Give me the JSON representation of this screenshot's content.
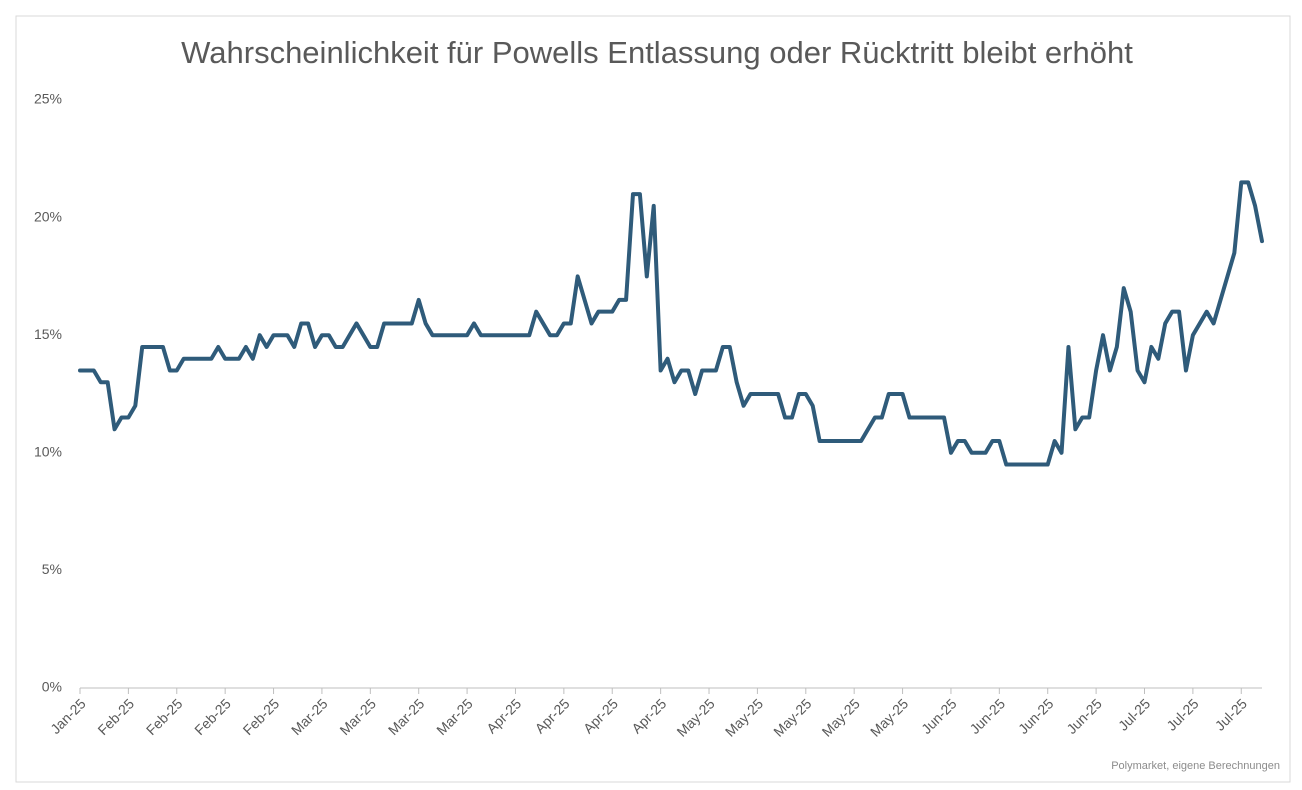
{
  "chart_data": {
    "type": "line",
    "title": "Wahrscheinlichkeit für Powells Entlassung oder Rücktritt bleibt erhöht",
    "source": "Polymarket, eigene Berechnungen",
    "color": "#2f5b7a",
    "grid": false,
    "ylim": [
      0,
      25
    ],
    "yticks": [
      {
        "value": 0,
        "label": "0%"
      },
      {
        "value": 5,
        "label": "5%"
      },
      {
        "value": 10,
        "label": "10%"
      },
      {
        "value": 15,
        "label": "15%"
      },
      {
        "value": 20,
        "label": "20%"
      },
      {
        "value": 25,
        "label": "25%"
      }
    ],
    "categories": [
      "Jan-25",
      null,
      null,
      null,
      null,
      null,
      null,
      "Feb-25",
      null,
      null,
      null,
      null,
      null,
      null,
      "Feb-25",
      null,
      null,
      null,
      null,
      null,
      null,
      "Feb-25",
      null,
      null,
      null,
      null,
      null,
      null,
      "Feb-25",
      null,
      null,
      null,
      null,
      null,
      null,
      "Mar-25",
      null,
      null,
      null,
      null,
      null,
      null,
      "Mar-25",
      null,
      null,
      null,
      null,
      null,
      null,
      "Mar-25",
      null,
      null,
      null,
      null,
      null,
      null,
      "Mar-25",
      null,
      null,
      null,
      null,
      null,
      null,
      "Apr-25",
      null,
      null,
      null,
      null,
      null,
      null,
      "Apr-25",
      null,
      null,
      null,
      null,
      null,
      null,
      "Apr-25",
      null,
      null,
      null,
      null,
      null,
      null,
      "Apr-25",
      null,
      null,
      null,
      null,
      null,
      null,
      "May-25",
      null,
      null,
      null,
      null,
      null,
      null,
      "May-25",
      null,
      null,
      null,
      null,
      null,
      null,
      "May-25",
      null,
      null,
      null,
      null,
      null,
      null,
      "May-25",
      null,
      null,
      null,
      null,
      null,
      null,
      "May-25",
      null,
      null,
      null,
      null,
      null,
      null,
      "Jun-25",
      null,
      null,
      null,
      null,
      null,
      null,
      "Jun-25",
      null,
      null,
      null,
      null,
      null,
      null,
      "Jun-25",
      null,
      null,
      null,
      null,
      null,
      null,
      "Jun-25",
      null,
      null,
      null,
      null,
      null,
      null,
      "Jul-25",
      null,
      null,
      null,
      null,
      null,
      null,
      "Jul-25",
      null,
      null,
      null,
      null,
      null,
      null,
      "Jul-25",
      null,
      null,
      null
    ],
    "values": [
      13.5,
      13.5,
      13.5,
      13,
      13,
      11,
      11.5,
      11.5,
      12,
      14.5,
      14.5,
      14.5,
      14.5,
      13.5,
      13.5,
      14,
      14,
      14,
      14,
      14,
      14.5,
      14,
      14,
      14,
      14.5,
      14,
      15,
      14.5,
      15,
      15,
      15,
      14.5,
      15.5,
      15.5,
      14.5,
      15,
      15,
      14.5,
      14.5,
      15,
      15.5,
      15,
      14.5,
      14.5,
      15.5,
      15.5,
      15.5,
      15.5,
      15.5,
      16.5,
      15.5,
      15,
      15,
      15,
      15,
      15,
      15,
      15.5,
      15,
      15,
      15,
      15,
      15,
      15,
      15,
      15,
      16,
      15.5,
      15,
      15,
      15.5,
      15.5,
      17.5,
      16.5,
      15.5,
      16,
      16,
      16,
      16.5,
      16.5,
      21,
      21,
      17.5,
      20.5,
      13.5,
      14,
      13,
      13.5,
      13.5,
      12.5,
      13.5,
      13.5,
      13.5,
      14.5,
      14.5,
      13,
      12,
      12.5,
      12.5,
      12.5,
      12.5,
      12.5,
      11.5,
      11.5,
      12.5,
      12.5,
      12,
      10.5,
      10.5,
      10.5,
      10.5,
      10.5,
      10.5,
      10.5,
      11,
      11.5,
      11.5,
      12.5,
      12.5,
      12.5,
      11.5,
      11.5,
      11.5,
      11.5,
      11.5,
      11.5,
      10,
      10.5,
      10.5,
      10,
      10,
      10,
      10.5,
      10.5,
      9.5,
      9.5,
      9.5,
      9.5,
      9.5,
      9.5,
      9.5,
      10.5,
      10,
      14.5,
      11,
      11.5,
      11.5,
      13.5,
      15,
      13.5,
      14.5,
      17,
      16,
      13.5,
      13,
      14.5,
      14,
      15.5,
      16,
      16,
      13.5,
      15,
      15.5,
      16,
      15.5,
      16.5,
      17.5,
      18.5,
      21.5,
      21.5,
      20.5,
      19
    ]
  }
}
